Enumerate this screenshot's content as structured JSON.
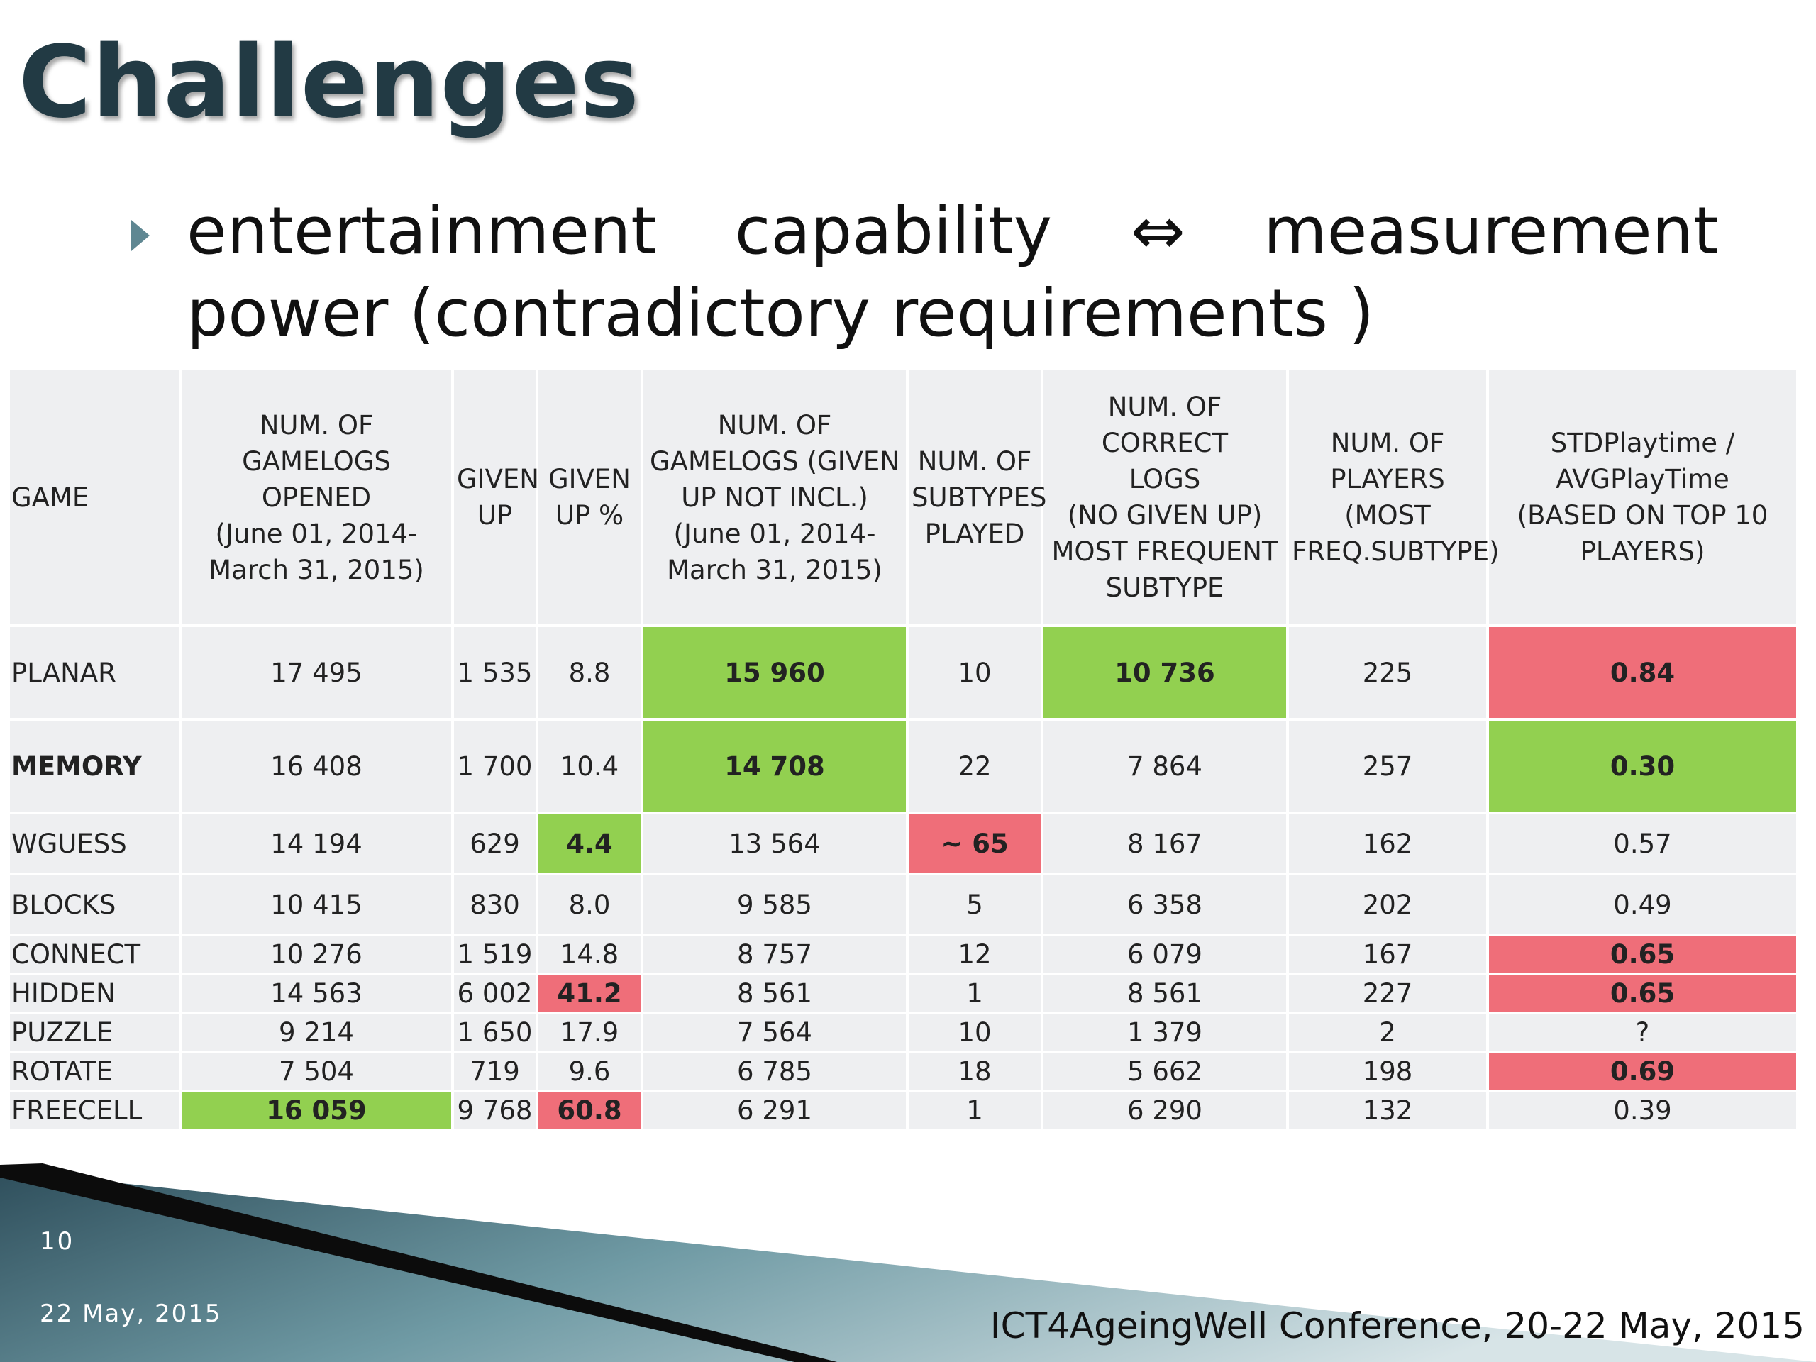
{
  "title": "Challenges",
  "bullet": {
    "line1_words": [
      "entertainment",
      "capability",
      "⇔",
      "measurement"
    ],
    "line2": "power (contradictory requirements )"
  },
  "table": {
    "headers": [
      "GAME",
      "NUM. OF GAMELOGS\nOPENED\n(June 01, 2014-\nMarch 31, 2015)",
      "GIVEN\nUP",
      "GIVEN\nUP %",
      "NUM. OF\nGAMELOGS (GIVEN\nUP NOT INCL.)\n(June 01, 2014-\nMarch 31, 2015)",
      "NUM. OF\nSUBTYPES\nPLAYED",
      "NUM. OF CORRECT\nLOGS\n(NO GIVEN UP)\nMOST FREQUENT\nSUBTYPE",
      "NUM. OF\nPLAYERS\n(MOST\nFREQ.SUBTYPE)",
      "STDPlaytime /\nAVGPlayTime\n(BASED ON TOP 10\nPLAYERS)"
    ],
    "rows": [
      {
        "cells": [
          "PLANAR",
          "17 495",
          "1 535",
          "8.8",
          "15 960",
          "10",
          "10 736",
          "225",
          "0.84"
        ],
        "highlights": [
          null,
          null,
          null,
          null,
          "green",
          null,
          "green",
          null,
          "red"
        ],
        "name_bold": false
      },
      {
        "cells": [
          "MEMORY",
          "16 408",
          "1 700",
          "10.4",
          "14 708",
          "22",
          "7 864",
          "257",
          "0.30"
        ],
        "highlights": [
          null,
          null,
          null,
          null,
          "green",
          null,
          null,
          null,
          "green"
        ],
        "name_bold": true
      },
      {
        "cells": [
          "WGUESS",
          "14 194",
          "629",
          "4.4",
          "13 564",
          "~ 65",
          "8 167",
          "162",
          "0.57"
        ],
        "highlights": [
          null,
          null,
          null,
          "green",
          null,
          "red",
          null,
          null,
          null
        ],
        "name_bold": false
      },
      {
        "cells": [
          "BLOCKS",
          "10 415",
          "830",
          "8.0",
          "9 585",
          "5",
          "6 358",
          "202",
          "0.49"
        ],
        "highlights": [
          null,
          null,
          null,
          null,
          null,
          null,
          null,
          null,
          null
        ],
        "name_bold": false
      },
      {
        "cells": [
          "CONNECT",
          "10 276",
          "1 519",
          "14.8",
          "8 757",
          "12",
          "6 079",
          "167",
          "0.65"
        ],
        "highlights": [
          null,
          null,
          null,
          null,
          null,
          null,
          null,
          null,
          "red"
        ],
        "name_bold": false
      },
      {
        "cells": [
          "HIDDEN",
          "14 563",
          "6 002",
          "41.2",
          "8 561",
          "1",
          "8 561",
          "227",
          "0.65"
        ],
        "highlights": [
          null,
          null,
          null,
          "red",
          null,
          null,
          null,
          null,
          "red"
        ],
        "name_bold": false
      },
      {
        "cells": [
          "PUZZLE",
          "9 214",
          "1 650",
          "17.9",
          "7 564",
          "10",
          "1 379",
          "2",
          "?"
        ],
        "highlights": [
          null,
          null,
          null,
          null,
          null,
          null,
          null,
          null,
          null
        ],
        "name_bold": false
      },
      {
        "cells": [
          "ROTATE",
          "7 504",
          "719",
          "9.6",
          "6 785",
          "18",
          "5 662",
          "198",
          "0.69"
        ],
        "highlights": [
          null,
          null,
          null,
          null,
          null,
          null,
          null,
          null,
          "red"
        ],
        "name_bold": false
      },
      {
        "cells": [
          "FREECELL",
          "16 059",
          "9 768",
          "60.8",
          "6 291",
          "1",
          "6 290",
          "132",
          "0.39"
        ],
        "highlights": [
          null,
          "green",
          null,
          "red",
          null,
          null,
          null,
          null,
          null
        ],
        "name_bold": false
      }
    ]
  },
  "footer": {
    "slide_number": "10",
    "date": "22 May, 2015",
    "conference": "ICT4AgeingWell Conference, 20-22 May, 2015"
  },
  "colors": {
    "green": "#92d050",
    "red": "#ef6e79",
    "cell_bg": "#eeeff1",
    "title": "#223a44"
  }
}
